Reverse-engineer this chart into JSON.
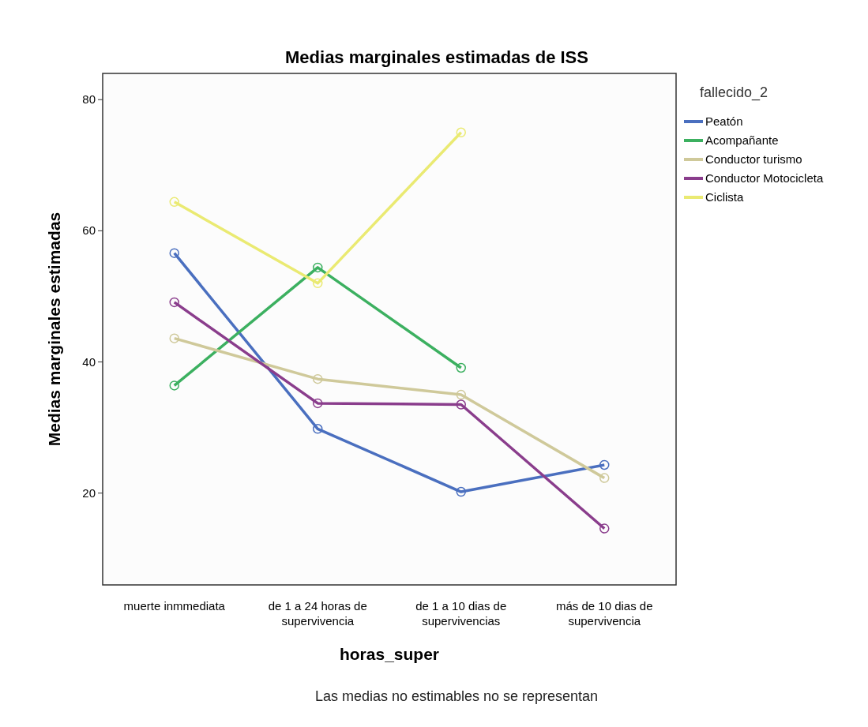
{
  "chart_data": {
    "type": "line",
    "title": "Medias marginales estimadas de ISS",
    "xlabel": "horas_super",
    "ylabel": "Medias marginales estimadas",
    "legend_title": "fallecido_2",
    "categories": [
      "muerte inmmediata",
      "de 1 a 24 horas de\nsupervivencia",
      "de 1 a 10 dias de\nsupervivencias",
      "más de 10 dias de\nsupervivencia"
    ],
    "series": [
      {
        "name": "Peatón",
        "color": "#4a6fbf",
        "values": [
          56.6,
          29.8,
          20.2,
          24.3
        ]
      },
      {
        "name": "Acompañante",
        "color": "#3cb060",
        "values": [
          36.4,
          54.4,
          39.1,
          null
        ]
      },
      {
        "name": "Conductor turismo",
        "color": "#cfc99a",
        "values": [
          43.6,
          37.4,
          35.0,
          22.3
        ]
      },
      {
        "name": "Conductor Motocicleta",
        "color": "#8a3d8c",
        "values": [
          49.1,
          33.7,
          33.5,
          14.6
        ]
      },
      {
        "name": "Ciclista",
        "color": "#eaea72",
        "values": [
          64.4,
          52.0,
          75.0,
          null
        ]
      }
    ],
    "ylim": [
      6,
      84
    ],
    "yticks": [
      20,
      40,
      60,
      80
    ],
    "grid": false,
    "legend": "top right",
    "marker": "circle",
    "line_style": "solid",
    "annotations": [
      "Las medias no estimables no se representan"
    ]
  }
}
